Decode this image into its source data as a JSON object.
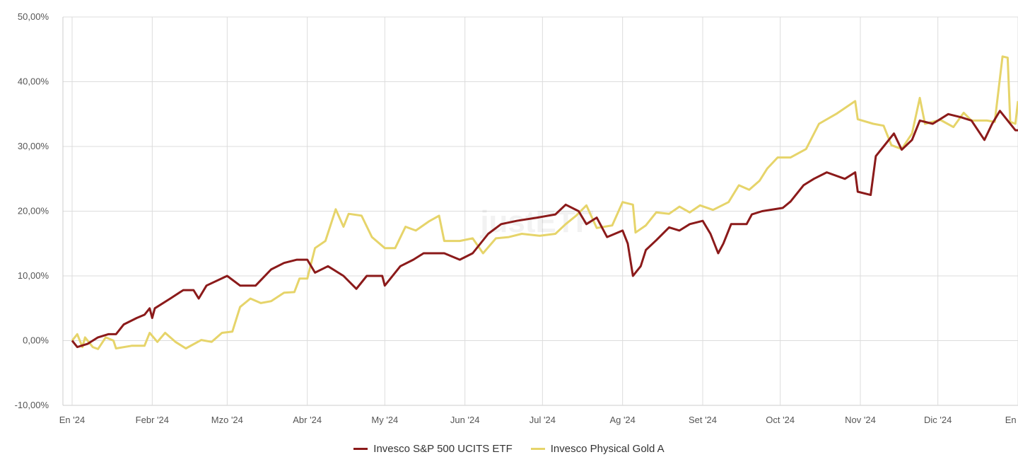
{
  "chart_data": {
    "type": "line",
    "title": "",
    "xlabel": "",
    "ylabel": "",
    "ylim": [
      -10,
      50
    ],
    "xlim": [
      "2023-12-28",
      "2025-01-01"
    ],
    "grid": true,
    "legend_position": "bottom",
    "watermark": "justETF",
    "y_ticks": [
      {
        "value": 50,
        "label": "50,00%"
      },
      {
        "value": 40,
        "label": "40,00%"
      },
      {
        "value": 30,
        "label": "30,00%"
      },
      {
        "value": 20,
        "label": "20,00%"
      },
      {
        "value": 10,
        "label": "10,00%"
      },
      {
        "value": 0,
        "label": "0,00%"
      },
      {
        "value": -10,
        "label": "-10,00%"
      }
    ],
    "x_ticks": [
      {
        "date": "2024-01-01",
        "label": "En '24"
      },
      {
        "date": "2024-02-01",
        "label": "Febr '24"
      },
      {
        "date": "2024-03-01",
        "label": "Mzo '24"
      },
      {
        "date": "2024-04-01",
        "label": "Abr '24"
      },
      {
        "date": "2024-05-01",
        "label": "My '24"
      },
      {
        "date": "2024-06-01",
        "label": "Jun '24"
      },
      {
        "date": "2024-07-01",
        "label": "Jul '24"
      },
      {
        "date": "2024-08-01",
        "label": "Ag '24"
      },
      {
        "date": "2024-09-01",
        "label": "Set '24"
      },
      {
        "date": "2024-10-01",
        "label": "Oct '24"
      },
      {
        "date": "2024-11-01",
        "label": "Nov '24"
      },
      {
        "date": "2024-12-01",
        "label": "Dic '24"
      },
      {
        "date": "2025-01-01",
        "label": "En '25"
      }
    ],
    "series": [
      {
        "name": "Invesco S&P 500 UCITS ETF",
        "color": "#8b1a1a",
        "points": [
          [
            "2024-01-01",
            0
          ],
          [
            "2024-01-03",
            -1
          ],
          [
            "2024-01-07",
            -0.5
          ],
          [
            "2024-01-11",
            0.5
          ],
          [
            "2024-01-15",
            1
          ],
          [
            "2024-01-18",
            1
          ],
          [
            "2024-01-21",
            2.5
          ],
          [
            "2024-01-26",
            3.5
          ],
          [
            "2024-01-29",
            4
          ],
          [
            "2024-01-31",
            5
          ],
          [
            "2024-02-01",
            3.5
          ],
          [
            "2024-02-02",
            5
          ],
          [
            "2024-02-08",
            6.5
          ],
          [
            "2024-02-13",
            7.8
          ],
          [
            "2024-02-17",
            7.8
          ],
          [
            "2024-02-19",
            6.5
          ],
          [
            "2024-02-22",
            8.5
          ],
          [
            "2024-03-01",
            10
          ],
          [
            "2024-03-06",
            8.5
          ],
          [
            "2024-03-12",
            8.5
          ],
          [
            "2024-03-18",
            11
          ],
          [
            "2024-03-23",
            12
          ],
          [
            "2024-03-28",
            12.5
          ],
          [
            "2024-04-01",
            12.5
          ],
          [
            "2024-04-04",
            10.5
          ],
          [
            "2024-04-09",
            11.5
          ],
          [
            "2024-04-15",
            10
          ],
          [
            "2024-04-20",
            8
          ],
          [
            "2024-04-24",
            10
          ],
          [
            "2024-04-30",
            10
          ],
          [
            "2024-05-01",
            8.5
          ],
          [
            "2024-05-07",
            11.5
          ],
          [
            "2024-05-12",
            12.5
          ],
          [
            "2024-05-16",
            13.5
          ],
          [
            "2024-05-24",
            13.5
          ],
          [
            "2024-05-30",
            12.5
          ],
          [
            "2024-06-04",
            13.5
          ],
          [
            "2024-06-10",
            16.5
          ],
          [
            "2024-06-15",
            18
          ],
          [
            "2024-06-21",
            18.5
          ],
          [
            "2024-06-29",
            19
          ],
          [
            "2024-07-06",
            19.5
          ],
          [
            "2024-07-10",
            21
          ],
          [
            "2024-07-15",
            20
          ],
          [
            "2024-07-18",
            18
          ],
          [
            "2024-07-22",
            19
          ],
          [
            "2024-07-26",
            16
          ],
          [
            "2024-08-01",
            17
          ],
          [
            "2024-08-03",
            15
          ],
          [
            "2024-08-05",
            10
          ],
          [
            "2024-08-08",
            11.5
          ],
          [
            "2024-08-10",
            14
          ],
          [
            "2024-08-14",
            15.5
          ],
          [
            "2024-08-19",
            17.5
          ],
          [
            "2024-08-23",
            17
          ],
          [
            "2024-08-27",
            18
          ],
          [
            "2024-09-01",
            18.5
          ],
          [
            "2024-09-04",
            16.5
          ],
          [
            "2024-09-07",
            13.5
          ],
          [
            "2024-09-09",
            15
          ],
          [
            "2024-09-12",
            18
          ],
          [
            "2024-09-18",
            18
          ],
          [
            "2024-09-20",
            19.5
          ],
          [
            "2024-09-24",
            20
          ],
          [
            "2024-10-02",
            20.5
          ],
          [
            "2024-10-05",
            21.5
          ],
          [
            "2024-10-10",
            24
          ],
          [
            "2024-10-14",
            25
          ],
          [
            "2024-10-19",
            26
          ],
          [
            "2024-10-26",
            25
          ],
          [
            "2024-10-30",
            26
          ],
          [
            "2024-10-31",
            23
          ],
          [
            "2024-11-05",
            22.5
          ],
          [
            "2024-11-07",
            28.5
          ],
          [
            "2024-11-10",
            30
          ],
          [
            "2024-11-14",
            32
          ],
          [
            "2024-11-17",
            29.5
          ],
          [
            "2024-11-21",
            31
          ],
          [
            "2024-11-24",
            34
          ],
          [
            "2024-11-29",
            33.5
          ],
          [
            "2024-12-05",
            35
          ],
          [
            "2024-12-10",
            34.5
          ],
          [
            "2024-12-14",
            34
          ],
          [
            "2024-12-19",
            31
          ],
          [
            "2024-12-22",
            33.5
          ],
          [
            "2024-12-25",
            35.5
          ],
          [
            "2024-12-28",
            34
          ],
          [
            "2024-12-31",
            32.5
          ],
          [
            "2025-01-01",
            32.5
          ]
        ]
      },
      {
        "name": "Invesco Physical Gold A",
        "color": "#e6d46a",
        "points": [
          [
            "2024-01-01",
            0
          ],
          [
            "2024-01-03",
            1
          ],
          [
            "2024-01-05",
            -1
          ],
          [
            "2024-01-06",
            0.5
          ],
          [
            "2024-01-09",
            -1
          ],
          [
            "2024-01-11",
            -1.3
          ],
          [
            "2024-01-14",
            0.5
          ],
          [
            "2024-01-17",
            0
          ],
          [
            "2024-01-18",
            -1.2
          ],
          [
            "2024-01-24",
            -0.8
          ],
          [
            "2024-01-29",
            -0.8
          ],
          [
            "2024-01-31",
            1.2
          ],
          [
            "2024-02-03",
            -0.2
          ],
          [
            "2024-02-06",
            1.2
          ],
          [
            "2024-02-10",
            -0.2
          ],
          [
            "2024-02-14",
            -1.2
          ],
          [
            "2024-02-20",
            0.1
          ],
          [
            "2024-02-24",
            -0.2
          ],
          [
            "2024-02-28",
            1.2
          ],
          [
            "2024-03-03",
            1.4
          ],
          [
            "2024-03-06",
            5.2
          ],
          [
            "2024-03-10",
            6.5
          ],
          [
            "2024-03-14",
            5.8
          ],
          [
            "2024-03-18",
            6.1
          ],
          [
            "2024-03-23",
            7.4
          ],
          [
            "2024-03-27",
            7.5
          ],
          [
            "2024-03-29",
            9.6
          ],
          [
            "2024-04-01",
            9.6
          ],
          [
            "2024-04-04",
            14.3
          ],
          [
            "2024-04-08",
            15.4
          ],
          [
            "2024-04-12",
            20.3
          ],
          [
            "2024-04-15",
            17.6
          ],
          [
            "2024-04-17",
            19.6
          ],
          [
            "2024-04-22",
            19.3
          ],
          [
            "2024-04-26",
            16
          ],
          [
            "2024-05-01",
            14.3
          ],
          [
            "2024-05-05",
            14.3
          ],
          [
            "2024-05-09",
            17.6
          ],
          [
            "2024-05-13",
            17
          ],
          [
            "2024-05-18",
            18.4
          ],
          [
            "2024-05-22",
            19.3
          ],
          [
            "2024-05-24",
            15.4
          ],
          [
            "2024-05-30",
            15.4
          ],
          [
            "2024-06-04",
            15.8
          ],
          [
            "2024-06-08",
            13.5
          ],
          [
            "2024-06-13",
            15.8
          ],
          [
            "2024-06-18",
            16
          ],
          [
            "2024-06-23",
            16.5
          ],
          [
            "2024-06-30",
            16.2
          ],
          [
            "2024-07-06",
            16.5
          ],
          [
            "2024-07-10",
            18
          ],
          [
            "2024-07-14",
            19.3
          ],
          [
            "2024-07-18",
            20.9
          ],
          [
            "2024-07-22",
            17.4
          ],
          [
            "2024-07-28",
            17.8
          ],
          [
            "2024-08-01",
            21.4
          ],
          [
            "2024-08-05",
            21
          ],
          [
            "2024-08-06",
            16.7
          ],
          [
            "2024-08-10",
            17.8
          ],
          [
            "2024-08-14",
            19.8
          ],
          [
            "2024-08-19",
            19.6
          ],
          [
            "2024-08-23",
            20.7
          ],
          [
            "2024-08-27",
            19.8
          ],
          [
            "2024-08-31",
            20.9
          ],
          [
            "2024-09-05",
            20.2
          ],
          [
            "2024-09-11",
            21.4
          ],
          [
            "2024-09-15",
            24
          ],
          [
            "2024-09-19",
            23.3
          ],
          [
            "2024-09-23",
            24.7
          ],
          [
            "2024-09-26",
            26.6
          ],
          [
            "2024-09-30",
            28.3
          ],
          [
            "2024-10-05",
            28.3
          ],
          [
            "2024-10-11",
            29.6
          ],
          [
            "2024-10-16",
            33.5
          ],
          [
            "2024-10-23",
            35.1
          ],
          [
            "2024-10-30",
            37
          ],
          [
            "2024-10-31",
            34.2
          ],
          [
            "2024-11-06",
            33.5
          ],
          [
            "2024-11-10",
            33.2
          ],
          [
            "2024-11-13",
            30.2
          ],
          [
            "2024-11-17",
            29.6
          ],
          [
            "2024-11-21",
            32
          ],
          [
            "2024-11-24",
            37.5
          ],
          [
            "2024-11-26",
            33.5
          ],
          [
            "2024-12-02",
            34.1
          ],
          [
            "2024-12-07",
            33
          ],
          [
            "2024-12-11",
            35.2
          ],
          [
            "2024-12-14",
            34
          ],
          [
            "2024-12-20",
            34
          ],
          [
            "2024-12-23",
            33.8
          ],
          [
            "2024-12-26",
            43.9
          ],
          [
            "2024-12-28",
            43.7
          ],
          [
            "2024-12-29",
            33.8
          ],
          [
            "2024-12-31",
            33.5
          ],
          [
            "2025-01-01",
            37
          ]
        ]
      }
    ]
  }
}
